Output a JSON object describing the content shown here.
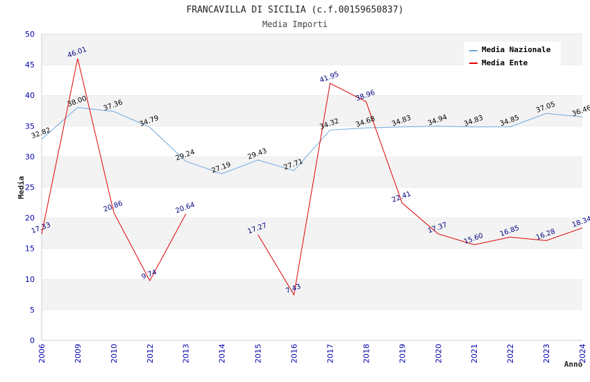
{
  "chart_data": {
    "type": "line",
    "title": "FRANCAVILLA DI SICILIA (c.f.00159650837)",
    "subtitle": "Media Importi",
    "xlabel": "Anno",
    "ylabel": "Media",
    "ylim": [
      0,
      50
    ],
    "yticks": [
      "0",
      "5",
      "10",
      "15",
      "20",
      "25",
      "30",
      "35",
      "40",
      "45",
      "50"
    ],
    "grid": true,
    "legend_position": "top-right",
    "categories": [
      "2006",
      "2009",
      "2010",
      "2012",
      "2013",
      "2014",
      "2015",
      "2016",
      "2017",
      "2018",
      "2019",
      "2020",
      "2021",
      "2022",
      "2023",
      "2024"
    ],
    "series": [
      {
        "name": "Media Nazionale",
        "color": "#6fa8dc",
        "label_color": "#000000",
        "values": [
          32.82,
          38.0,
          37.36,
          34.79,
          29.24,
          27.19,
          29.43,
          27.71,
          34.32,
          34.68,
          34.83,
          34.94,
          34.83,
          34.85,
          37.05,
          36.46
        ],
        "labels": [
          "32.82",
          "38.00",
          "37.36",
          "34.79",
          "29.24",
          "27.19",
          "29.43",
          "27.71",
          "34.32",
          "34.68",
          "34.83",
          "34.94",
          "34.83",
          "34.85",
          "37.05",
          "36.46"
        ]
      },
      {
        "name": "Media Ente",
        "color": "#dd0000",
        "label_color": "#000080",
        "values": [
          17.33,
          46.01,
          20.86,
          9.74,
          20.64,
          null,
          17.27,
          7.43,
          41.95,
          38.96,
          22.41,
          17.37,
          15.6,
          16.85,
          16.28,
          18.34
        ],
        "labels": [
          "17.33",
          "46.01",
          "20.86",
          "9.74",
          "20.64",
          "",
          "17.27",
          "7.43",
          "41.95",
          "38.96",
          "22.41",
          "17.37",
          "15.60",
          "16.85",
          "16.28",
          "18.34"
        ]
      }
    ]
  }
}
